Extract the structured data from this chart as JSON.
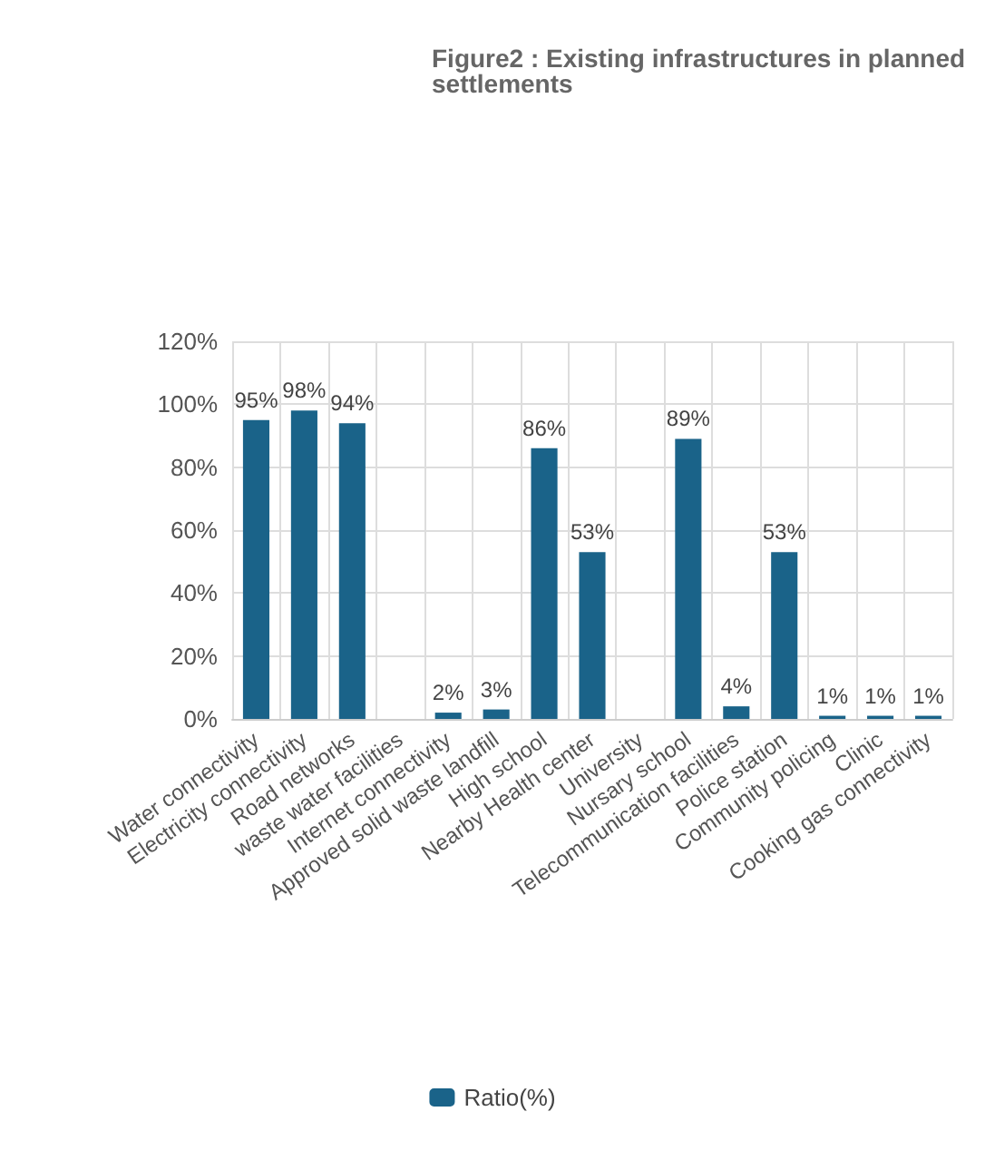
{
  "chart_data": {
    "type": "bar",
    "title": "Figure2 : Existing infrastructures in planned settlements",
    "categories": [
      "Water connectivity",
      "Electricity connectivity",
      "Road networks",
      "waste water facilities",
      "Internet connectivity",
      "Approved solid waste landfill",
      "High school",
      "Nearby Health center",
      "University",
      "Nursary school",
      "Telecommunication facilities",
      "Police station",
      "Community policing",
      "Clinic",
      "Cooking gas connectivity"
    ],
    "series": [
      {
        "name": "Ratio(%)",
        "color": "#1a6389",
        "values": [
          95,
          98,
          94,
          0,
          2,
          3,
          86,
          53,
          0,
          89,
          4,
          53,
          1,
          1,
          1
        ],
        "value_labels": [
          "95%",
          "98%",
          "94%",
          null,
          "2%",
          "3%",
          "86%",
          "53%",
          null,
          "89%",
          "4%",
          "53%",
          "1%",
          "1%",
          "1%"
        ]
      }
    ],
    "ylim": [
      0,
      120
    ],
    "yticks": [
      {
        "value": 0,
        "label": "0%"
      },
      {
        "value": 20,
        "label": "20%"
      },
      {
        "value": 40,
        "label": "40%"
      },
      {
        "value": 60,
        "label": "60%"
      },
      {
        "value": 80,
        "label": "80%"
      },
      {
        "value": 100,
        "label": "100%"
      },
      {
        "value": 120,
        "label": "120%"
      }
    ],
    "grid": true,
    "legend": "bottom"
  }
}
